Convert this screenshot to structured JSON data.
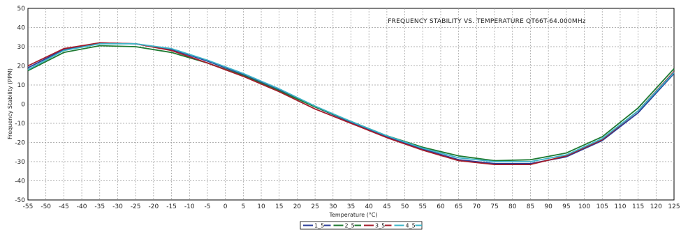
{
  "chart_data": {
    "type": "line",
    "title": "FREQUENCY STABILITY VS. TEMPERATURE QT66T-64.000MHz",
    "xlabel": "Temperature (°C)",
    "ylabel": "Frequency Stability (PPM)",
    "xlim": [
      -55,
      125
    ],
    "ylim": [
      -50,
      50
    ],
    "grid": true,
    "legend_position": "bottom-center",
    "x_ticks": [
      "-55",
      "-50",
      "-45",
      "-40",
      "-35",
      "-30",
      "-25",
      "-20",
      "-15",
      "-10",
      "-5",
      "0",
      "5",
      "10",
      "15",
      "20",
      "25",
      "30",
      "35",
      "40",
      "45",
      "50",
      "55",
      "60",
      "65",
      "70",
      "75",
      "80",
      "85",
      "90",
      "95",
      "100",
      "105",
      "110",
      "115",
      "120",
      "125"
    ],
    "y_ticks": [
      "50",
      "40",
      "30",
      "20",
      "10",
      "0",
      "-10",
      "-20",
      "-30",
      "-40",
      "-50"
    ],
    "x": [
      -55,
      -45,
      -35,
      -25,
      -15,
      -5,
      5,
      15,
      25,
      35,
      45,
      55,
      65,
      75,
      85,
      95,
      105,
      115,
      125
    ],
    "series": [
      {
        "name": "1_5",
        "color": "#2b3f9a",
        "values": [
          19,
          28.5,
          32,
          31.5,
          28.5,
          22.5,
          15.5,
          7.5,
          -1.5,
          -9.5,
          -17,
          -23.5,
          -29,
          -31,
          -31,
          -27.5,
          -19,
          -4.5,
          16
        ]
      },
      {
        "name": "2_5",
        "color": "#1e7a32",
        "values": [
          17.5,
          27,
          30.5,
          30,
          27,
          21.5,
          15,
          7,
          -1.5,
          -9,
          -16.5,
          -22.5,
          -27,
          -29.5,
          -29,
          -25.5,
          -17,
          -2,
          18.5
        ]
      },
      {
        "name": "3_5",
        "color": "#a31d2b",
        "values": [
          20,
          29,
          32,
          31.5,
          28,
          21.5,
          14.5,
          6.5,
          -2.5,
          -10,
          -17.5,
          -24,
          -29.5,
          -31.5,
          -31.5,
          -27,
          -18.5,
          -3.5,
          17
        ]
      },
      {
        "name": "4_5",
        "color": "#3cb4c8",
        "values": [
          18,
          28,
          31.5,
          31.5,
          29,
          23,
          16,
          8,
          -1,
          -9,
          -16.5,
          -23,
          -28,
          -30,
          -30,
          -26.5,
          -18,
          -3.5,
          16.5
        ]
      }
    ]
  }
}
